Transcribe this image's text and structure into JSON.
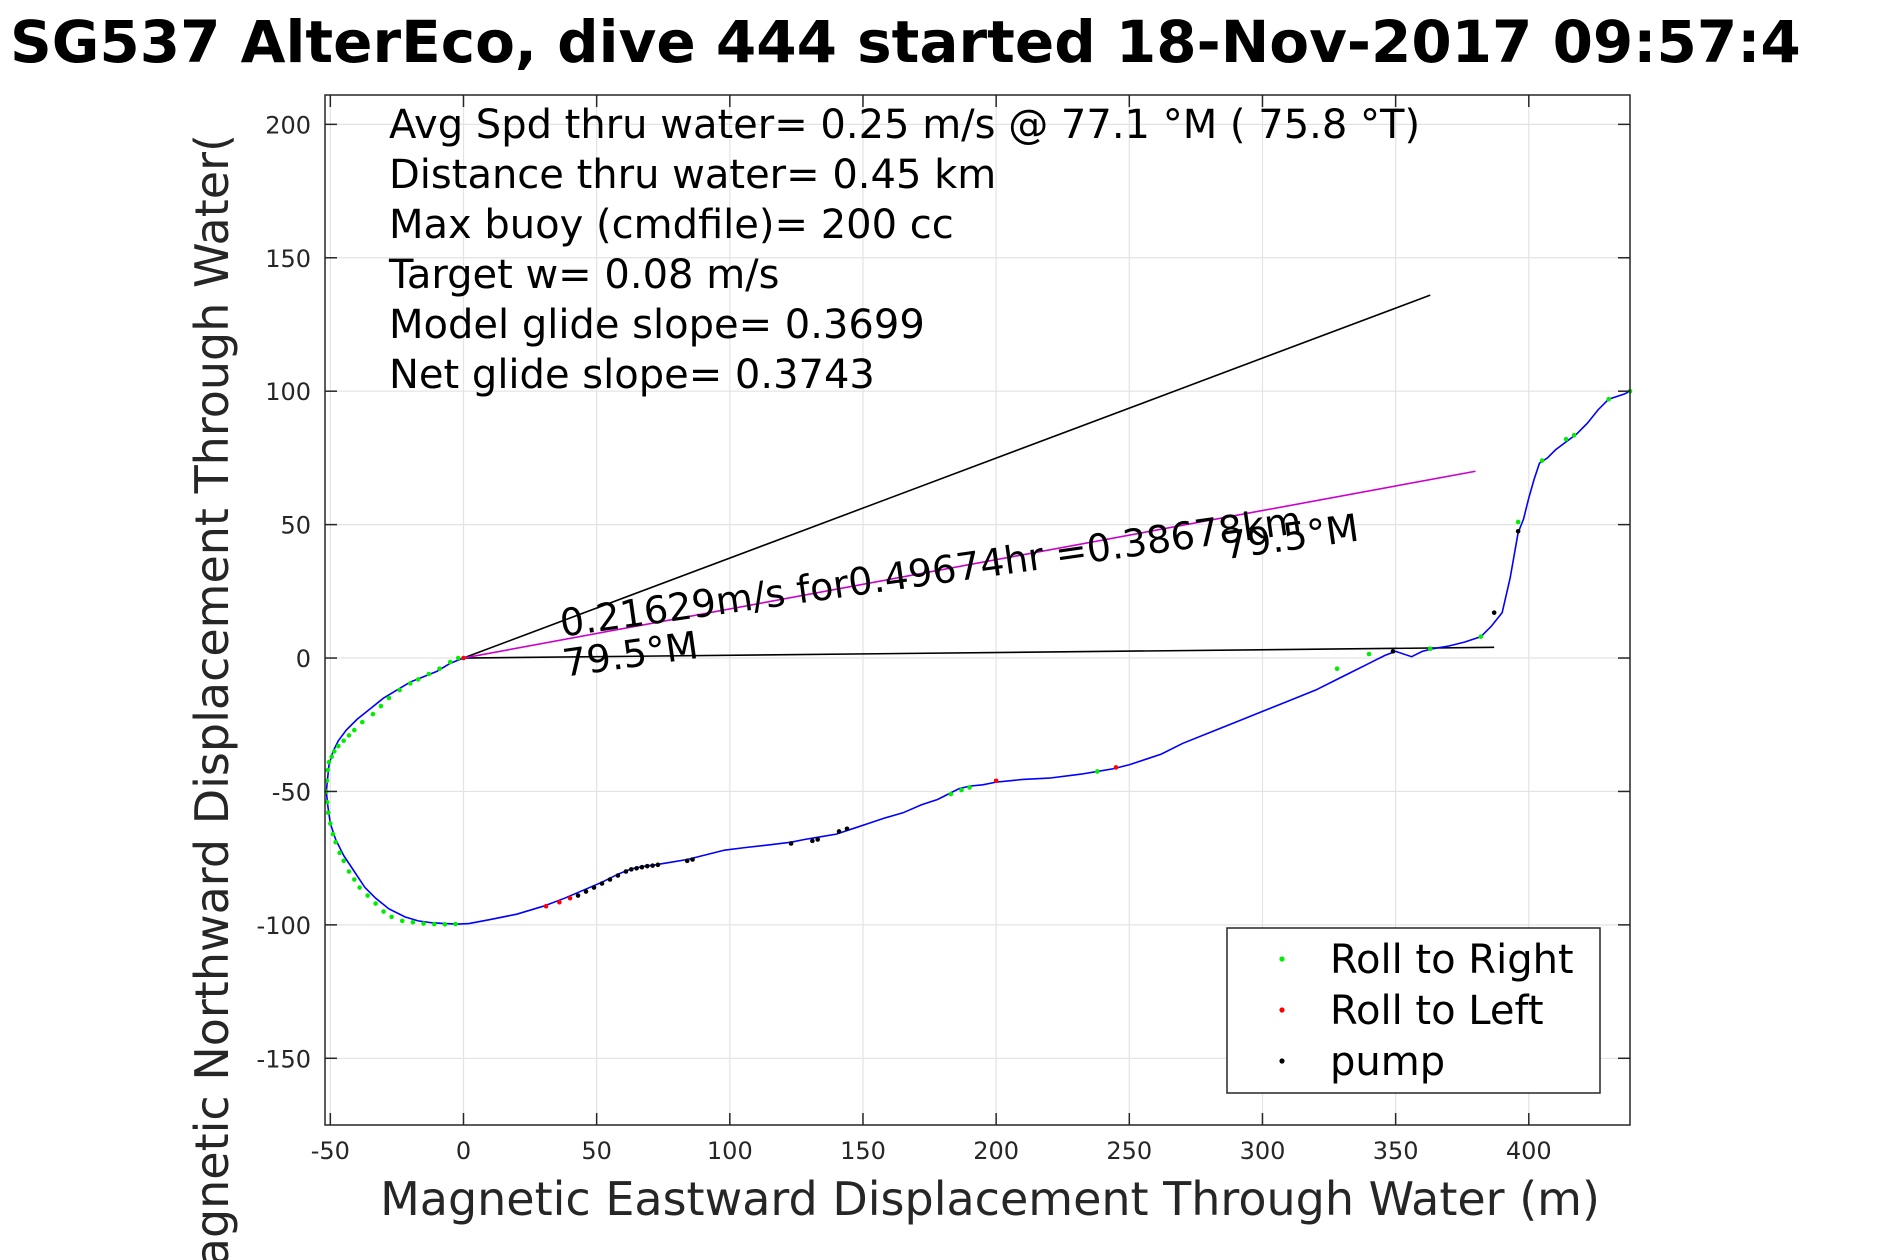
{
  "chart_data": {
    "type": "line",
    "title": "SG537 AlterEco, dive 444 started 18-Nov-2017 09:57:4",
    "xlabel": "Magnetic Eastward Displacement Through Water (m)",
    "ylabel": "Magnetic Northward Displacement Through Water(",
    "xlim": [
      -52,
      438
    ],
    "ylim": [
      -175,
      211
    ],
    "xticks": [
      -50,
      0,
      50,
      100,
      150,
      200,
      250,
      300,
      350,
      400
    ],
    "xtick_labels": [
      "-50",
      "0",
      "50",
      "100",
      "150",
      "200",
      "250",
      "300",
      "350",
      "400"
    ],
    "yticks": [
      -150,
      -100,
      -50,
      0,
      50,
      100,
      150,
      200
    ],
    "ytick_labels": [
      "-150",
      "-100",
      "-50",
      "0",
      "50",
      "100",
      "150",
      "200"
    ],
    "grid": true,
    "legend_position": "bottom-right",
    "stats_text": [
      "Avg Spd thru water=  0.25 m/s @  77.1 °M ( 75.8 °T)",
      "Distance thru water=  0.45 km",
      "Max buoy (cmdfile)= 200 cc",
      "Target w= 0.08 m/s",
      "Model glide slope= 0.3699",
      "Net glide slope= 0.3743"
    ],
    "annotations": [
      {
        "text": "0.21629m/s for0.49674hr =0.38678km",
        "x": 37,
        "y": 8,
        "angle_deg": -8
      },
      {
        "text": "79.5°M",
        "x": 38,
        "y": -7,
        "angle_deg": -8
      },
      {
        "text": "79.5°M",
        "x": 286,
        "y": 37,
        "angle_deg": -8
      }
    ],
    "reference_lines": [
      {
        "name": "upper heading line",
        "color": "#000000",
        "points": [
          [
            0,
            0
          ],
          [
            363,
            136
          ]
        ]
      },
      {
        "name": "net displacement line",
        "color": "#000000",
        "points": [
          [
            0,
            0
          ],
          [
            387,
            4
          ]
        ]
      },
      {
        "name": "current vector",
        "color": "#cc00cc",
        "points": [
          [
            0,
            0
          ],
          [
            380,
            70
          ]
        ]
      }
    ],
    "track": {
      "name": "glider track",
      "color": "#0000ff",
      "x": [
        0,
        -5,
        -10,
        -15,
        -20,
        -25,
        -30,
        -35,
        -40,
        -44,
        -47,
        -49,
        -50.5,
        -51,
        -51.5,
        -51,
        -50,
        -48,
        -45,
        -41,
        -37,
        -33,
        -28,
        -22,
        -17,
        -12,
        -7,
        -2,
        2,
        10,
        20,
        30,
        38,
        45,
        52,
        58,
        63,
        68,
        72,
        78,
        84,
        90,
        98,
        106,
        115,
        123,
        128,
        134,
        140,
        146,
        152,
        158,
        165,
        172,
        178,
        182,
        186,
        190,
        195,
        200,
        205,
        210,
        220,
        228,
        232,
        238,
        244,
        250,
        256,
        262,
        270,
        280,
        290,
        300,
        310,
        320,
        328,
        334,
        338,
        342,
        346,
        350,
        356,
        360,
        364,
        370,
        376,
        382,
        386,
        390,
        393,
        396,
        398,
        400,
        402,
        404,
        407,
        410,
        414,
        418,
        422,
        426,
        430,
        436,
        438
      ],
      "y": [
        0,
        -2,
        -5,
        -7,
        -9,
        -12,
        -15,
        -19,
        -23,
        -27,
        -31,
        -35,
        -40,
        -45,
        -50,
        -55,
        -62,
        -68,
        -74,
        -80,
        -86,
        -90,
        -94,
        -97,
        -98.5,
        -99.2,
        -99.5,
        -99.7,
        -99.5,
        -98,
        -96,
        -93,
        -90,
        -87,
        -84,
        -81,
        -79,
        -78,
        -77.5,
        -76.5,
        -75.5,
        -74,
        -72,
        -71,
        -70,
        -69,
        -68,
        -67,
        -66,
        -64,
        -62,
        -60,
        -58,
        -55,
        -53,
        -51,
        -49,
        -48,
        -47.5,
        -46.5,
        -46,
        -45.5,
        -45,
        -44,
        -43.5,
        -42.5,
        -41.5,
        -40,
        -38,
        -36,
        -32,
        -28,
        -24,
        -20,
        -16,
        -12,
        -8,
        -5,
        -3,
        -1,
        1,
        2.5,
        0.5,
        2.5,
        3.5,
        4.5,
        6,
        8,
        12,
        17,
        30,
        47,
        52,
        60,
        67,
        73,
        75,
        78,
        81,
        84,
        88,
        93,
        97,
        99,
        100
      ]
    },
    "series": [
      {
        "name": "Roll to Right",
        "color": "#00ee00",
        "marker": "dot",
        "x": [
          -51,
          -51.3,
          -51.5,
          -51.2,
          -50.8,
          -50,
          -49,
          -48,
          -46.5,
          -45,
          -43,
          -41,
          -39,
          -36,
          -33,
          -30,
          -27,
          -23,
          -19,
          -15,
          -11,
          -7,
          -3,
          -2,
          -5,
          -9,
          -13,
          -17,
          -20,
          -24,
          -28,
          -31,
          -34,
          -38,
          -41,
          -43,
          -45,
          -47,
          -48.5,
          -49.5,
          -50.5,
          183,
          187,
          190,
          238,
          328,
          340,
          363,
          382,
          396,
          405,
          414,
          417,
          430,
          438
        ],
        "y": [
          -42,
          -46,
          -50,
          -54,
          -58,
          -62,
          -66,
          -69,
          -73,
          -76,
          -80,
          -83,
          -86,
          -89,
          -92,
          -95,
          -97,
          -98.5,
          -99,
          -99.5,
          -99.7,
          -99.8,
          -99.7,
          0,
          -1.5,
          -4,
          -6,
          -8,
          -9.5,
          -12,
          -15,
          -18,
          -21,
          -24,
          -27,
          -29,
          -31,
          -33,
          -35,
          -37,
          -39,
          -51,
          -49.5,
          -48.5,
          -42.5,
          -4,
          1.5,
          3.5,
          8,
          51,
          74,
          82,
          83.5,
          97,
          100
        ]
      },
      {
        "name": "Roll to Left",
        "color": "#ff0000",
        "marker": "dot",
        "x": [
          0,
          31,
          36,
          40,
          200,
          245
        ],
        "y": [
          0,
          -93,
          -91.5,
          -90,
          -46,
          -41
        ]
      },
      {
        "name": "pump",
        "color": "#000000",
        "marker": "dot",
        "x": [
          43,
          46,
          49,
          52,
          55,
          58,
          61,
          63,
          65,
          67,
          69,
          71,
          73,
          84,
          86,
          123,
          131,
          133,
          141,
          144,
          349,
          387,
          396
        ],
        "y": [
          -89,
          -87.5,
          -86,
          -84.5,
          -83,
          -81.5,
          -80,
          -79.2,
          -78.8,
          -78.4,
          -78,
          -77.8,
          -77.5,
          -76,
          -75.5,
          -69.5,
          -68.5,
          -68,
          -65,
          -64,
          2.5,
          17,
          47.5
        ]
      }
    ]
  }
}
